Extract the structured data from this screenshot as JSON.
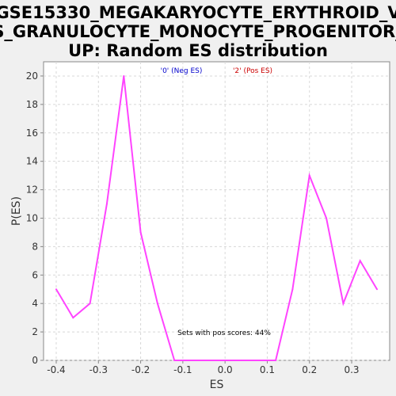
{
  "chart_data": {
    "type": "line",
    "title_lines": [
      "GSE15330_MEGAKARYOCYTE_ERYTHROID_V",
      "S_GRANULOCYTE_MONOCYTE_PROGENITOR_",
      "UP: Random ES distribution"
    ],
    "xlabel": "ES",
    "ylabel": "P(ES)",
    "xlim": [
      -0.43,
      0.39
    ],
    "ylim": [
      0,
      21
    ],
    "x_ticks": [
      -0.4,
      -0.3,
      -0.2,
      -0.1,
      0.0,
      0.1,
      0.2,
      0.3
    ],
    "x_tick_labels": [
      "-0.4",
      "-0.3",
      "-0.2",
      "-0.1",
      "0.0",
      "0.1",
      "0.2",
      "0.3"
    ],
    "y_ticks": [
      0,
      2,
      4,
      6,
      8,
      10,
      12,
      14,
      16,
      18,
      20
    ],
    "y_tick_labels": [
      "0",
      "2",
      "4",
      "6",
      "8",
      "10",
      "12",
      "14",
      "16",
      "18",
      "20"
    ],
    "grid": true,
    "legend": [
      {
        "label": "'0' (Neg ES)",
        "color": "#0000cc"
      },
      {
        "label": "'2' (Pos ES)",
        "color": "#cc0000"
      }
    ],
    "legend_placement": "top-center",
    "annotation": "Sets with pos scores: 44%",
    "series": [
      {
        "color": "#ff44ff",
        "x": [
          -0.4,
          -0.36,
          -0.32,
          -0.28,
          -0.24,
          -0.2,
          -0.16,
          -0.12,
          -0.08,
          -0.04,
          0.0,
          0.04,
          0.08,
          0.12,
          0.16,
          0.2,
          0.24,
          0.28,
          0.32,
          0.36
        ],
        "y": [
          5,
          3,
          4,
          11,
          20,
          9,
          4,
          0,
          0,
          0,
          0,
          0,
          0,
          0,
          5,
          13,
          10,
          4,
          7,
          5
        ]
      }
    ]
  }
}
